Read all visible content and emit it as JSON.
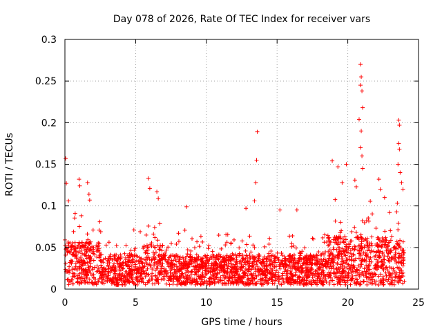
{
  "chart_data": {
    "type": "scatter",
    "title": "Day 078 of 2026, Rate Of TEC Index for receiver vars",
    "xlabel": "GPS time / hours",
    "ylabel": "ROTI / TECUs",
    "xlim": [
      0,
      25
    ],
    "ylim": [
      0,
      0.3
    ],
    "xticks": [
      "0",
      "5",
      "10",
      "15",
      "20",
      "25"
    ],
    "yticks": [
      "0",
      "0.05",
      "0.1",
      "0.15",
      "0.2",
      "0.25",
      "0.3"
    ],
    "grid": true,
    "marker": "+",
    "color": "#ff0000",
    "peaks": [
      {
        "x": 0.05,
        "y": 0.157
      },
      {
        "x": 0.1,
        "y": 0.127
      },
      {
        "x": 0.25,
        "y": 0.106
      },
      {
        "x": 1.0,
        "y": 0.132
      },
      {
        "x": 1.05,
        "y": 0.124
      },
      {
        "x": 1.6,
        "y": 0.128
      },
      {
        "x": 1.7,
        "y": 0.114
      },
      {
        "x": 1.75,
        "y": 0.107
      },
      {
        "x": 5.9,
        "y": 0.133
      },
      {
        "x": 6.0,
        "y": 0.121
      },
      {
        "x": 6.5,
        "y": 0.117
      },
      {
        "x": 6.6,
        "y": 0.109
      },
      {
        "x": 8.6,
        "y": 0.099
      },
      {
        "x": 12.8,
        "y": 0.097
      },
      {
        "x": 13.4,
        "y": 0.106
      },
      {
        "x": 13.6,
        "y": 0.189
      },
      {
        "x": 13.55,
        "y": 0.155
      },
      {
        "x": 13.5,
        "y": 0.128
      },
      {
        "x": 15.2,
        "y": 0.095
      },
      {
        "x": 16.4,
        "y": 0.095
      },
      {
        "x": 18.9,
        "y": 0.154
      },
      {
        "x": 19.3,
        "y": 0.147
      },
      {
        "x": 19.6,
        "y": 0.128
      },
      {
        "x": 19.9,
        "y": 0.15
      },
      {
        "x": 20.5,
        "y": 0.131
      },
      {
        "x": 20.6,
        "y": 0.123
      },
      {
        "x": 20.9,
        "y": 0.27
      },
      {
        "x": 20.95,
        "y": 0.255
      },
      {
        "x": 20.9,
        "y": 0.245
      },
      {
        "x": 21.0,
        "y": 0.238
      },
      {
        "x": 21.05,
        "y": 0.218
      },
      {
        "x": 20.8,
        "y": 0.204
      },
      {
        "x": 20.95,
        "y": 0.19
      },
      {
        "x": 20.9,
        "y": 0.17
      },
      {
        "x": 21.0,
        "y": 0.16
      },
      {
        "x": 21.05,
        "y": 0.145
      },
      {
        "x": 22.2,
        "y": 0.132
      },
      {
        "x": 22.3,
        "y": 0.12
      },
      {
        "x": 22.6,
        "y": 0.11
      },
      {
        "x": 23.6,
        "y": 0.203
      },
      {
        "x": 23.65,
        "y": 0.197
      },
      {
        "x": 23.6,
        "y": 0.175
      },
      {
        "x": 23.65,
        "y": 0.168
      },
      {
        "x": 23.55,
        "y": 0.15
      },
      {
        "x": 23.7,
        "y": 0.14
      },
      {
        "x": 23.8,
        "y": 0.128
      },
      {
        "x": 23.9,
        "y": 0.12
      }
    ]
  }
}
